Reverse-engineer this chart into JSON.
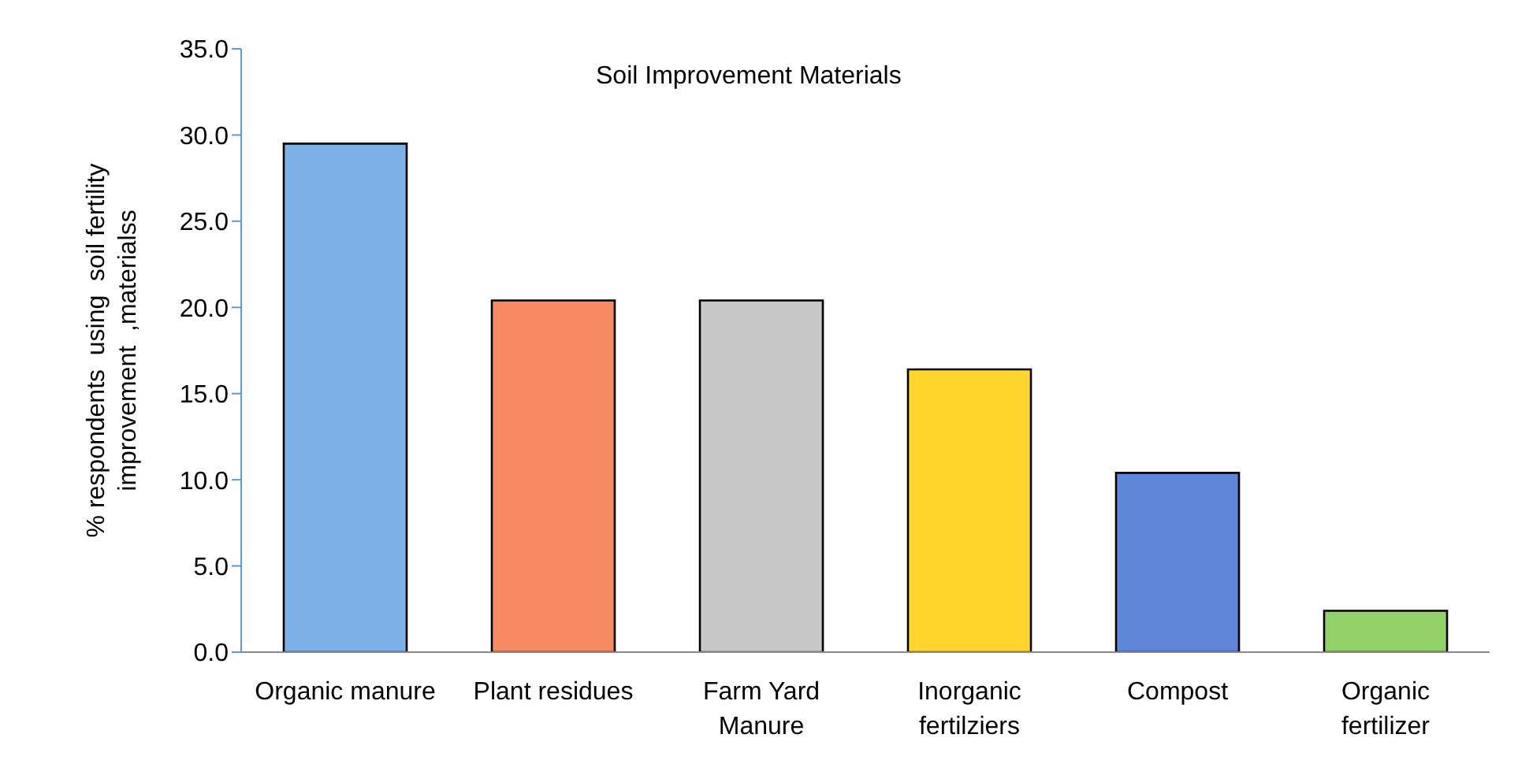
{
  "chart_data": {
    "type": "bar",
    "title": "Soil Improvement Materials",
    "ylabel": "% respondents  using  soil fertility improvement  ,materialss",
    "categories": [
      "Organic manure",
      "Plant residues",
      "Farm Yard Manure",
      "Inorganic fertilziers",
      "Compost",
      "Organic fertilizer"
    ],
    "values": [
      29.5,
      20.4,
      20.4,
      16.4,
      10.4,
      2.4
    ],
    "colors": [
      "#7eb2e6",
      "#f58a63",
      "#c8c8c8",
      "#ffd52e",
      "#5f86d8",
      "#93d06a"
    ],
    "ylim": [
      0,
      35
    ],
    "yticks": [
      {
        "value": 0,
        "label": "0.0"
      },
      {
        "value": 5,
        "label": "5.0"
      },
      {
        "value": 10,
        "label": "10.0"
      },
      {
        "value": 15,
        "label": "15.0"
      },
      {
        "value": 20,
        "label": "20.0"
      },
      {
        "value": 25,
        "label": "25.0"
      },
      {
        "value": 30,
        "label": "30.0"
      },
      {
        "value": 35,
        "label": "35.0"
      }
    ],
    "grid": false,
    "legend": false
  }
}
